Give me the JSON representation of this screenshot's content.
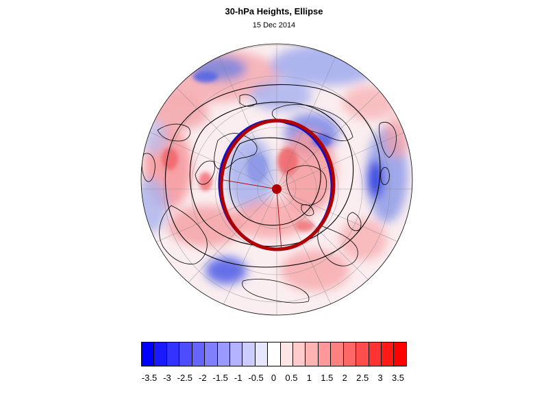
{
  "title": "30-hPa Heights, Ellipse",
  "subtitle": "15 Dec 2014",
  "colorbar": {
    "labels": [
      "-3.5",
      "-3",
      "-2.5",
      "-2",
      "-1.5",
      "-1",
      "-0.5",
      "0",
      "0.5",
      "1",
      "1.5",
      "2",
      "2.5",
      "3",
      "3.5"
    ],
    "colors": [
      "#0000ff",
      "#1a1aff",
      "#3333ff",
      "#4d4dff",
      "#6666ff",
      "#8080ff",
      "#9999ff",
      "#b3b3ff",
      "#ccccff",
      "#e6e6ff",
      "#ffffff",
      "#ffe6e6",
      "#ffcccc",
      "#ffb3b3",
      "#ff9999",
      "#ff8080",
      "#ff6666",
      "#ff4d4d",
      "#ff3333",
      "#ff1a1a",
      "#ff0000"
    ]
  },
  "map": {
    "projection": "polar stereographic, North Pole",
    "fill_field": "height anomaly",
    "ellipse_colors": [
      "#b00000",
      "#1010c8"
    ],
    "contour_color": "#000000",
    "land_outline_color": "#000000",
    "grid_color": "#888888"
  }
}
